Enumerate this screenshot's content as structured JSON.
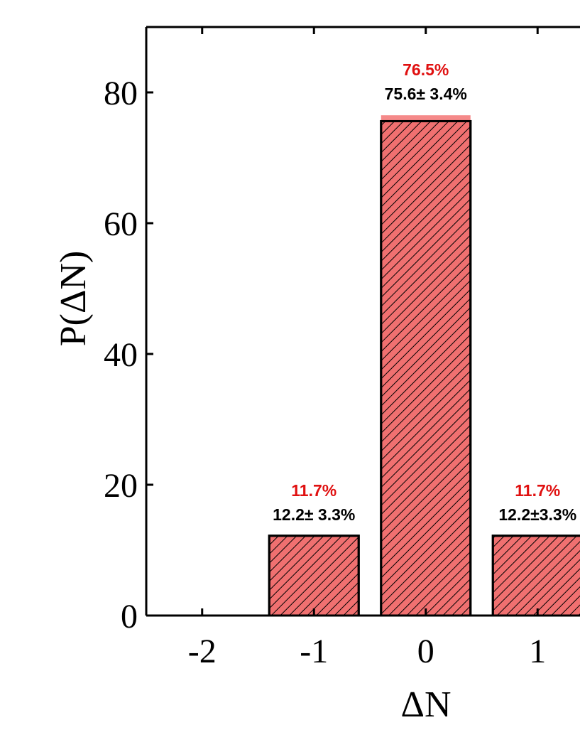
{
  "chart_data": {
    "type": "bar",
    "x_label": "ΔN",
    "y_label": "P(ΔN)",
    "x": [
      -2,
      -1,
      0,
      1
    ],
    "xlim": [
      -2.5,
      2.5
    ],
    "xticks": [
      -2,
      -1,
      0,
      1
    ],
    "ylim": [
      0,
      90
    ],
    "yticks": [
      0,
      20,
      40,
      60,
      80
    ],
    "hatch": true,
    "series": [
      {
        "color": "#f26b6b",
        "values": [
          null,
          11.7,
          76.5,
          11.7
        ],
        "value_labels": [
          null,
          "11.7%",
          "76.5%",
          "11.7%"
        ],
        "label_color": "#e01010"
      },
      {
        "color": "#f07070",
        "values": [
          null,
          12.2,
          75.6,
          12.2
        ],
        "value_labels": [
          null,
          "12.2± 3.3%",
          "75.6± 3.4%",
          "12.2±3.3%"
        ],
        "label_color": "#000000"
      }
    ]
  }
}
